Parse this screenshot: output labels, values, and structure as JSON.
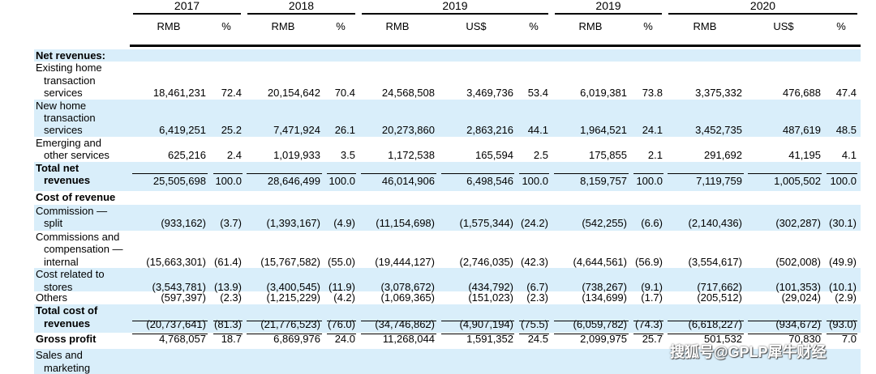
{
  "years": [
    "2017",
    "2018",
    "2019",
    "2019",
    "2020"
  ],
  "column_headers": [
    "RMB",
    "%",
    "RMB",
    "%",
    "RMB",
    "US$",
    "%",
    "RMB",
    "%",
    "RMB",
    "US$",
    "%"
  ],
  "rows": [
    {
      "label": [
        "Net revenues:"
      ],
      "bold": true,
      "values": []
    },
    {
      "label": [
        "Existing home",
        "transaction",
        "services"
      ],
      "values": [
        "18,461,231",
        "72.4",
        "20,154,642",
        "70.4",
        "24,568,508",
        "3,469,736",
        "53.4",
        "6,019,381",
        "73.8",
        "3,375,332",
        "476,688",
        "47.4"
      ]
    },
    {
      "label": [
        "New home",
        "transaction",
        "services"
      ],
      "values": [
        "6,419,251",
        "25.2",
        "7,471,924",
        "26.1",
        "20,273,860",
        "2,863,216",
        "44.1",
        "1,964,521",
        "24.1",
        "3,452,735",
        "487,619",
        "48.5"
      ]
    },
    {
      "label": [
        "Emerging and",
        "other services"
      ],
      "values": [
        "625,216",
        "2.4",
        "1,019,933",
        "3.5",
        "1,172,538",
        "165,594",
        "2.5",
        "175,855",
        "2.1",
        "291,692",
        "41,195",
        "4.1"
      ]
    },
    {
      "label": [
        "Total net",
        "revenues"
      ],
      "bold": true,
      "values": [
        "25,505,698",
        "100.0",
        "28,646,499",
        "100.0",
        "46,014,906",
        "6,498,546",
        "100.0",
        "8,159,757",
        "100.0",
        "7,119,759",
        "1,005,502",
        "100.0"
      ]
    },
    {
      "label": [
        "Cost of revenue"
      ],
      "bold": true,
      "values": []
    },
    {
      "label": [
        "Commission —",
        "split"
      ],
      "values": [
        "(933,162)",
        "(3.7)",
        "(1,393,167)",
        "(4.9)",
        "(11,154,698)",
        "(1,575,344)",
        "(24.2)",
        "(542,255)",
        "(6.6)",
        "(2,140,436)",
        "(302,287)",
        "(30.1)"
      ]
    },
    {
      "label": [
        "Commissions and",
        "compensation —",
        "internal"
      ],
      "values": [
        "(15,663,301)",
        "(61.4)",
        "(15,767,582)",
        "(55.0)",
        "(19,444,127)",
        "(2,746,035)",
        "(42.3)",
        "(4,644,561)",
        "(56.9)",
        "(3,554,617)",
        "(502,008)",
        "(49.9)"
      ]
    },
    {
      "label": [
        "Cost related to",
        "stores"
      ],
      "values": [
        "(3,543,781)",
        "(13.9)",
        "(3,400,545)",
        "(11.9)",
        "(3,078,672)",
        "(434,792)",
        "(6.7)",
        "(738,267)",
        "(9.1)",
        "(717,662)",
        "(101,353)",
        "(10.1)"
      ]
    },
    {
      "label": [
        "Others"
      ],
      "values": [
        "(597,397)",
        "(2.3)",
        "(1,215,229)",
        "(4.2)",
        "(1,069,365)",
        "(151,023)",
        "(2.3)",
        "(134,699)",
        "(1.7)",
        "(205,512)",
        "(29,024)",
        "(2.9)"
      ]
    },
    {
      "label": [
        "Total cost of",
        "revenues"
      ],
      "bold": true,
      "values": [
        "(20,737,641)",
        "(81.3)",
        "(21,776,523)",
        "(76.0)",
        "(34,746,862)",
        "(4,907,194)",
        "(75.5)",
        "(6,059,782)",
        "(74.3)",
        "(6,618,227)",
        "(934,672)",
        "(93.0)"
      ]
    },
    {
      "label": [
        "Gross profit"
      ],
      "bold": true,
      "values": [
        "4,768,057",
        "18.7",
        "6,869,976",
        "24.0",
        "11,268,044",
        "1,591,352",
        "24.5",
        "2,099,975",
        "25.7",
        "501,532",
        "70,830",
        "7.0"
      ]
    },
    {
      "label": [
        "Sales and",
        "marketing"
      ],
      "values": []
    }
  ],
  "watermark": "搜狐号@GPLP犀牛财经"
}
